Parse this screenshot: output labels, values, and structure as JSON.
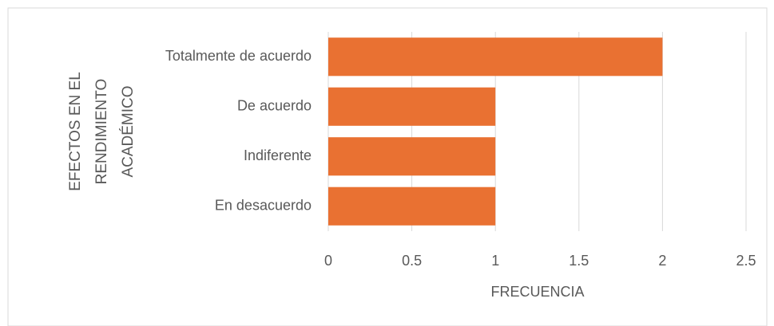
{
  "chart_data": {
    "type": "bar",
    "orientation": "horizontal",
    "categories": [
      "Totalmente de acuerdo",
      "De acuerdo",
      "Indiferente",
      "En desacuerdo"
    ],
    "values": [
      2,
      1,
      1,
      1
    ],
    "color": "#e97132",
    "xlabel": "FRECUENCIA",
    "ylabel": "EFECTOS EN EL RENDIMIENTO ACADÉMICO",
    "xlim": [
      0,
      2.5
    ],
    "xticks": [
      0,
      0.5,
      1,
      1.5,
      2,
      2.5
    ],
    "grid": true
  }
}
